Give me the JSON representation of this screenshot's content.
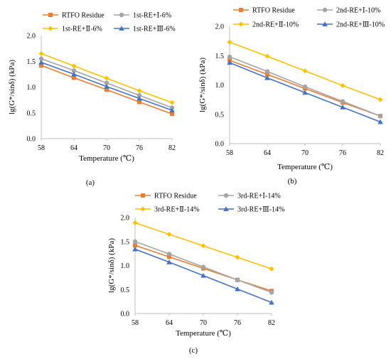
{
  "chart_data": [
    {
      "type": "line",
      "panel_label": "(a)",
      "x": [
        58,
        64,
        70,
        76,
        82
      ],
      "xlabel": "Temperature (℃)",
      "ylabel": "lg(G*/sinδ) (kPa)",
      "ylim": [
        0,
        2
      ],
      "yticks": [
        "0.0",
        "0.5",
        "1.0",
        "1.5",
        "2.0"
      ],
      "xticks": [
        "58",
        "64",
        "70",
        "76",
        "82"
      ],
      "grid": false,
      "legend_position": "top",
      "series": [
        {
          "name": "RTFO Residue",
          "color": "#ed7d31",
          "marker": "square",
          "values": [
            1.42,
            1.18,
            0.95,
            0.71,
            0.48
          ]
        },
        {
          "name": "1st-RE+Ⅰ-6%",
          "color": "#a5a5a5",
          "marker": "circle",
          "values": [
            1.55,
            1.32,
            1.08,
            0.84,
            0.6
          ]
        },
        {
          "name": "1st-RE+Ⅱ-6%",
          "color": "#ffc000",
          "marker": "diamond",
          "values": [
            1.65,
            1.41,
            1.17,
            0.93,
            0.7
          ]
        },
        {
          "name": "1st-RE+Ⅲ-6%",
          "color": "#4472c4",
          "marker": "triangle",
          "values": [
            1.48,
            1.25,
            1.01,
            0.78,
            0.55
          ]
        }
      ]
    },
    {
      "type": "line",
      "panel_label": "(b)",
      "x": [
        58,
        64,
        70,
        76,
        82
      ],
      "xlabel": "Temperature (℃)",
      "ylabel": "lg(G*/sinδ) (kPa)",
      "ylim": [
        0,
        2
      ],
      "yticks": [
        "0.0",
        "0.5",
        "1.0",
        "1.5",
        "2.0"
      ],
      "xticks": [
        "58",
        "64",
        "70",
        "76",
        "82"
      ],
      "grid": false,
      "legend_position": "top",
      "series": [
        {
          "name": "RTFO Residue",
          "color": "#ed7d31",
          "marker": "square",
          "values": [
            1.42,
            1.18,
            0.94,
            0.7,
            0.47
          ]
        },
        {
          "name": "2nd-RE+Ⅰ-10%",
          "color": "#a5a5a5",
          "marker": "circle",
          "values": [
            1.48,
            1.23,
            0.97,
            0.72,
            0.47
          ]
        },
        {
          "name": "2nd-RE+Ⅱ-10%",
          "color": "#ffc000",
          "marker": "diamond",
          "values": [
            1.73,
            1.49,
            1.24,
            0.99,
            0.75
          ]
        },
        {
          "name": "2nd-RE+Ⅲ-10%",
          "color": "#4472c4",
          "marker": "triangle",
          "values": [
            1.38,
            1.12,
            0.87,
            0.62,
            0.37
          ]
        }
      ]
    },
    {
      "type": "line",
      "panel_label": "(c)",
      "x": [
        58,
        64,
        70,
        76,
        82
      ],
      "xlabel": "Temperature (℃)",
      "ylabel": "lg(G*/sinδ) (kPa)",
      "ylim": [
        0,
        2
      ],
      "yticks": [
        "0.0",
        "0.5",
        "1.0",
        "1.5",
        "2.0"
      ],
      "xticks": [
        "58",
        "64",
        "70",
        "76",
        "82"
      ],
      "grid": false,
      "legend_position": "top",
      "series": [
        {
          "name": "RTFO Residue",
          "color": "#ed7d31",
          "marker": "square",
          "values": [
            1.42,
            1.18,
            0.94,
            0.7,
            0.47
          ]
        },
        {
          "name": "3rd-RE+Ⅰ-14%",
          "color": "#a5a5a5",
          "marker": "circle",
          "values": [
            1.5,
            1.24,
            0.97,
            0.7,
            0.44
          ]
        },
        {
          "name": "3rd-RE+Ⅱ-14%",
          "color": "#ffc000",
          "marker": "diamond",
          "values": [
            1.89,
            1.65,
            1.41,
            1.17,
            0.93
          ]
        },
        {
          "name": "3rd-RE+Ⅲ-14%",
          "color": "#4472c4",
          "marker": "triangle",
          "values": [
            1.34,
            1.07,
            0.79,
            0.51,
            0.23
          ]
        }
      ]
    }
  ]
}
